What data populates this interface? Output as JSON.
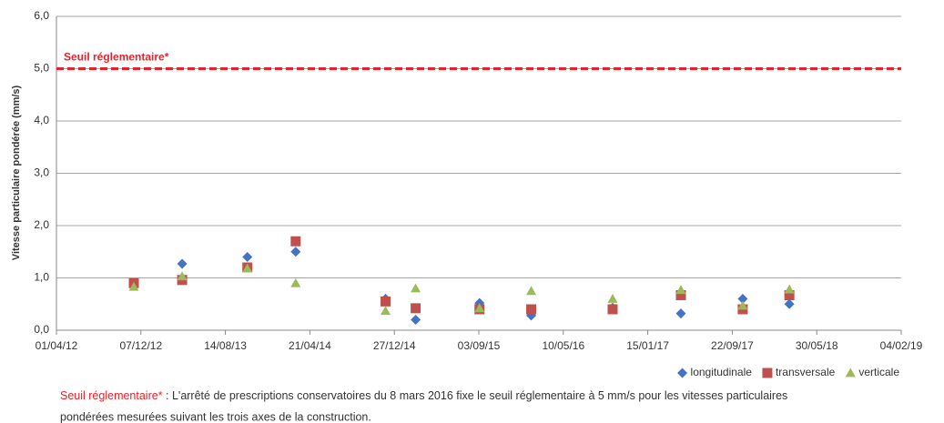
{
  "chart_data": {
    "type": "scatter",
    "y_label": "Vitesse particulaire pondérée (mm/s)",
    "x": [
      "2012-11-16",
      "2013-04-08",
      "2013-10-18",
      "2014-03-10",
      "2014-12-01",
      "2015-02-28",
      "2015-09-05",
      "2016-02-05",
      "2016-10-03",
      "2017-04-23",
      "2017-10-23",
      "2018-03-10"
    ],
    "series": [
      {
        "name": "longitudinale",
        "color": "#4472c4",
        "marker": "diamond",
        "values": [
          0.88,
          1.27,
          1.4,
          1.5,
          0.6,
          0.2,
          0.52,
          0.28,
          0.43,
          0.32,
          0.6,
          0.5
        ]
      },
      {
        "name": "transversale",
        "color": "#c0504d",
        "marker": "square",
        "values": [
          0.9,
          0.96,
          1.2,
          1.7,
          0.55,
          0.42,
          0.4,
          0.4,
          0.4,
          0.67,
          0.4,
          0.67
        ]
      },
      {
        "name": "verticale",
        "color": "#9bbb59",
        "marker": "triangle",
        "values": [
          0.83,
          1.03,
          1.18,
          0.9,
          0.37,
          0.8,
          0.42,
          0.75,
          0.6,
          0.77,
          0.47,
          0.78
        ]
      }
    ],
    "xlim": [
      "2012-04-01",
      "2019-02-04"
    ],
    "xticks": [
      {
        "value": "2012-04-01",
        "label": "01/04/12"
      },
      {
        "value": "2012-12-07",
        "label": "07/12/12"
      },
      {
        "value": "2013-08-14",
        "label": "14/08/13"
      },
      {
        "value": "2014-04-21",
        "label": "21/04/14"
      },
      {
        "value": "2014-12-27",
        "label": "27/12/14"
      },
      {
        "value": "2015-09-03",
        "label": "03/09/15"
      },
      {
        "value": "2016-05-10",
        "label": "10/05/16"
      },
      {
        "value": "2017-01-15",
        "label": "15/01/17"
      },
      {
        "value": "2017-09-22",
        "label": "22/09/17"
      },
      {
        "value": "2018-05-30",
        "label": "30/05/18"
      },
      {
        "value": "2019-02-04",
        "label": "04/02/19"
      }
    ],
    "ylim": [
      0,
      6
    ],
    "yticks": [
      {
        "value": 0,
        "label": "0,0"
      },
      {
        "value": 1,
        "label": "1,0"
      },
      {
        "value": 2,
        "label": "2,0"
      },
      {
        "value": 3,
        "label": "3,0"
      },
      {
        "value": 4,
        "label": "4,0"
      },
      {
        "value": 5,
        "label": "5,0"
      },
      {
        "value": 6,
        "label": "6,0"
      }
    ],
    "grid": true,
    "legend": "bottom-right",
    "reference_line": {
      "value": 5,
      "label": "Seuil réglementaire*",
      "color": "#e8212a"
    },
    "footnote": {
      "label": "Seuil réglementaire*",
      "lines": [
        " : L'arrêté de prescriptions conservatoires du 8 mars 2016 fixe le seuil réglementaire à 5 mm/s pour les vitesses particulaires",
        "pondérées mesurées suivant les trois axes de la construction."
      ]
    }
  }
}
